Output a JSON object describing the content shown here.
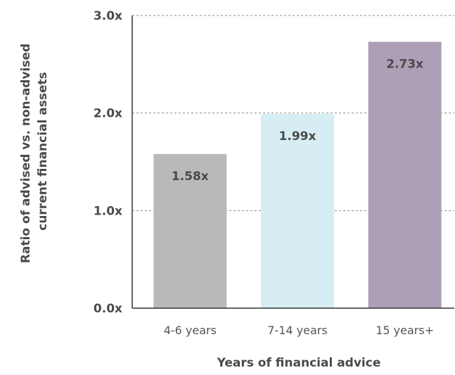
{
  "chart_data": {
    "type": "bar",
    "categories": [
      "4-6 years",
      "7-14 years",
      "15 years+"
    ],
    "values": [
      1.58,
      1.99,
      2.73
    ],
    "data_labels": [
      "1.58x",
      "1.99x",
      "2.73x"
    ],
    "xlabel": "Years of financial advice",
    "ylabel_lines": [
      "Ratio of advised vs. non-advised",
      "current financial assets"
    ],
    "ylim": [
      0,
      3
    ],
    "yticks": [
      0,
      1,
      2,
      3
    ],
    "ytick_labels": [
      "0.0x",
      "1.0x",
      "2.0x",
      "3.0x"
    ],
    "grid": true,
    "colors": [
      "#b9b9ba",
      "#d6eef3",
      "#ac9fb6"
    ]
  }
}
